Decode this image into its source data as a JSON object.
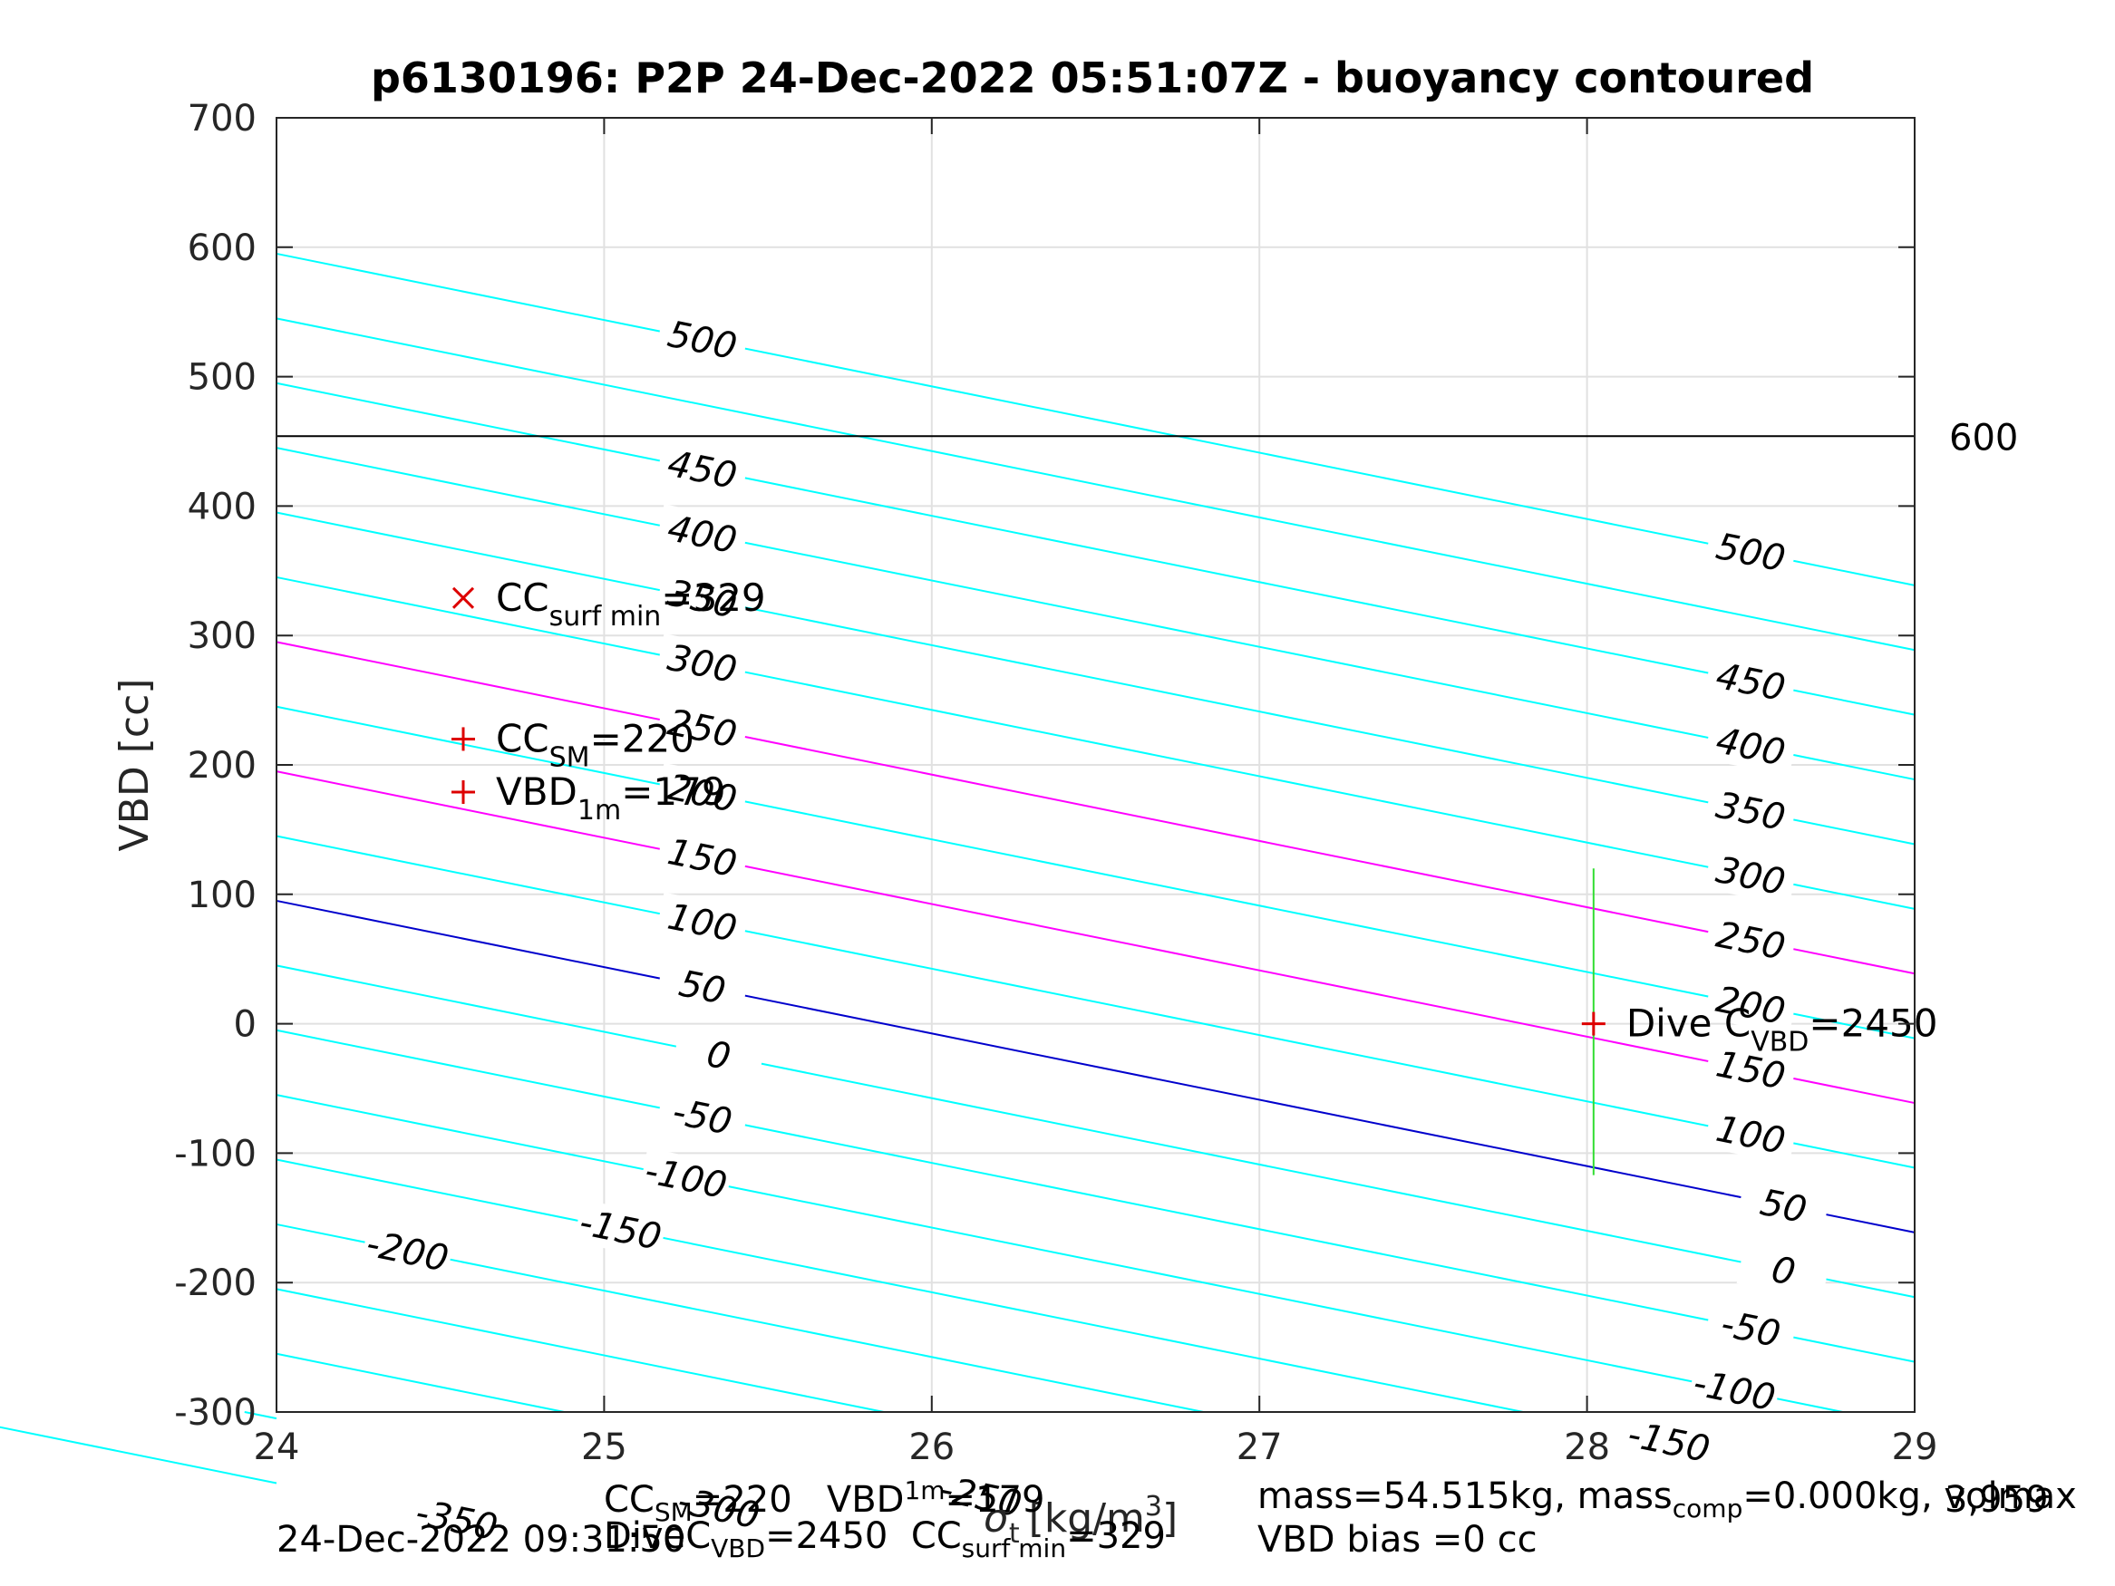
{
  "chart_data": {
    "type": "line",
    "title": "p6130196: P2P 24-Dec-2022 05:51:07Z - buoyancy contoured",
    "xlabel_main": "σ",
    "xlabel_sub": "t",
    "xlabel_units": "[kg/m",
    "xlabel_sup": "3",
    "xlabel_close": "]",
    "ylabel": "VBD [cc]",
    "xlim": [
      24,
      29
    ],
    "ylim": [
      -300,
      700
    ],
    "grid": true,
    "xticks": [
      "24",
      "25",
      "26",
      "27",
      "28",
      "29"
    ],
    "yticks": [
      "-300",
      "-200",
      "-100",
      "0",
      "100",
      "200",
      "300",
      "400",
      "500",
      "600",
      "700"
    ],
    "contour_slope": -51.25,
    "contours": [
      {
        "y_at_24": 595,
        "label": "500",
        "color": "#00ffff",
        "label_x": 25.3,
        "label_x2": 28.5,
        "label2": "500"
      },
      {
        "y_at_24": 545,
        "label": "",
        "color": "#00ffff"
      },
      {
        "y_at_24": 495,
        "label": "450",
        "color": "#00ffff",
        "label_x": 25.3,
        "label_x2": 28.5,
        "label2": "450"
      },
      {
        "y_at_24": 445,
        "label": "400",
        "color": "#00ffff",
        "label_x": 25.3,
        "label_x2": 28.5,
        "label2": "400"
      },
      {
        "y_at_24": 395,
        "label": "350",
        "color": "#00ffff",
        "label_x": 25.3,
        "label_x2": 28.5,
        "label2": "350"
      },
      {
        "y_at_24": 345,
        "label": "300",
        "color": "#00ffff",
        "label_x": 25.3,
        "label_x2": 28.5,
        "label2": "300"
      },
      {
        "y_at_24": 295,
        "label": "250",
        "color": "#ff00ff",
        "label_x": 25.3,
        "label_x2": 28.5,
        "label2": "250"
      },
      {
        "y_at_24": 245,
        "label": "200",
        "color": "#00ffff",
        "label_x": 25.3,
        "label_x2": 28.5,
        "label2": "200"
      },
      {
        "y_at_24": 195,
        "label": "150",
        "color": "#ff00ff",
        "label_x": 25.3,
        "label_x2": 28.5,
        "label2": "150"
      },
      {
        "y_at_24": 145,
        "label": "100",
        "color": "#00ffff",
        "label_x": 25.3,
        "label_x2": 28.5,
        "label2": "100"
      },
      {
        "y_at_24": 95,
        "label": "50",
        "color": "#0000cc",
        "label_x": 25.3,
        "label_x2": 28.6,
        "label2": "50"
      },
      {
        "y_at_24": 45,
        "label": "0",
        "color": "#00ffff",
        "label_x": 25.35,
        "label_x2": 28.6,
        "label2": "0"
      },
      {
        "y_at_24": -5,
        "label": "-50",
        "color": "#00ffff",
        "label_x": 25.3,
        "label_x2": 28.5,
        "label2": "-50"
      },
      {
        "y_at_24": -55,
        "label": "-100",
        "color": "#00ffff",
        "label_x": 25.25,
        "label_x2": 28.45,
        "label2": "-100"
      },
      {
        "y_at_24": -105,
        "label": "-150",
        "color": "#00ffff",
        "label_x": 25.05,
        "label_x2": 28.25,
        "label2": "-150"
      },
      {
        "y_at_24": -155,
        "label": "-200",
        "color": "#00ffff",
        "label_x": 24.4,
        "label_x2": null,
        "label2": ""
      },
      {
        "y_at_24": -205,
        "label": "",
        "color": "#00ffff"
      },
      {
        "y_at_24": -255,
        "label": "-250",
        "color": "#00ffff",
        "label_x": 26.15,
        "label_x2": null,
        "label2": ""
      },
      {
        "y_at_24": -305,
        "label": "-300",
        "color": "#00ffff",
        "label_x": 25.35,
        "label_x2": null,
        "label2": ""
      },
      {
        "y_at_24": -355,
        "label": "-350",
        "color": "#00ffff",
        "label_x": 24.55,
        "label_x2": null,
        "label2": ""
      }
    ],
    "hline": {
      "y": 454,
      "label": "600",
      "color": "#000000"
    },
    "markers": [
      {
        "x": 24.57,
        "y": 329,
        "symbol": "x",
        "color": "#dd0000",
        "text": "CC",
        "sub": "surf min",
        "tail": "=329"
      },
      {
        "x": 24.57,
        "y": 220,
        "symbol": "+",
        "color": "#dd0000",
        "text": "CC",
        "sub": "SM",
        "tail": "=220"
      },
      {
        "x": 24.57,
        "y": 179,
        "symbol": "+",
        "color": "#dd0000",
        "text": "VBD",
        "sub": "1m",
        "tail": "=179"
      },
      {
        "x": 28.02,
        "y": 0,
        "symbol": "+",
        "color": "#dd0000",
        "text": "Dive C",
        "sub": "VBD",
        "tail": "=2450"
      }
    ],
    "trajectory_top": {
      "y": 120,
      "x_start": 27.67,
      "x_end": 28.02
    },
    "trajectory_bottom": {
      "y": -117,
      "x_start": 27.65,
      "x_end": 28.02
    },
    "trajectory_vertical": {
      "x": 28.02,
      "y_from": -117,
      "y_to": 120,
      "color": "#33dd33"
    }
  },
  "footer": {
    "line1_cc": "CC",
    "line1_cc_sub": "SM",
    "line1_cc_val": "=220",
    "line1_vbd": "VBD",
    "line1_vbd_sub": "1m",
    "line1_vbd_val": "=179",
    "line2_dive": "DiveC",
    "line2_dive_sub": "VBD",
    "line2_dive_val": "=2450",
    "line2_cc": "CC",
    "line2_cc_sub": "surf min",
    "line2_cc_val": "=329",
    "mass_text": "mass=54.515kg, mass",
    "mass_sub": "comp",
    "mass_val": "=0.000kg, volmax",
    "volmax_val": "3,959",
    "bias": "VBD bias =0 cc",
    "timestamp": "24-Dec-2022 09:31:50"
  }
}
